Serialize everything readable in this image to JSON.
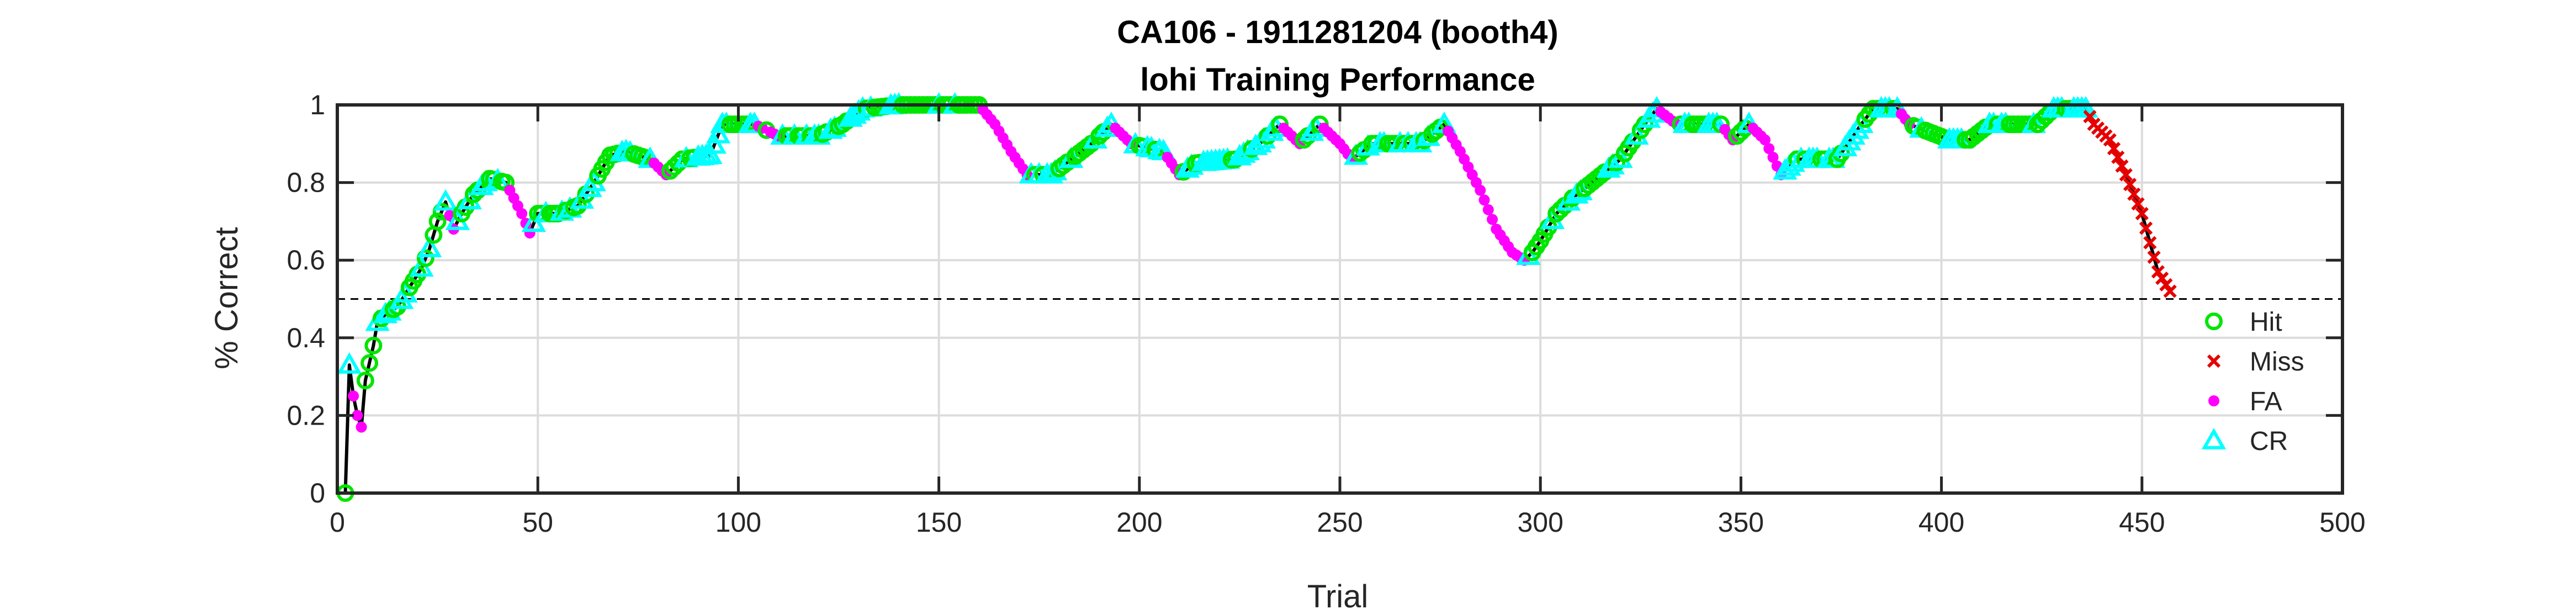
{
  "chart_data": {
    "type": "line",
    "title": "CA106 - 1911281204 (booth4)",
    "subtitle": "lohi Training Performance",
    "xlabel": "Trial",
    "ylabel": "% Correct",
    "xlim": [
      0,
      500
    ],
    "ylim": [
      0,
      1
    ],
    "xticks": [
      0,
      50,
      100,
      150,
      200,
      250,
      300,
      350,
      400,
      450,
      500
    ],
    "yticks": [
      0,
      0.2,
      0.4,
      0.6,
      0.8,
      1
    ],
    "xtick_labels": [
      "0",
      "50",
      "100",
      "150",
      "200",
      "250",
      "300",
      "350",
      "400",
      "450",
      "500"
    ],
    "ytick_labels": [
      "0",
      "0.2",
      "0.4",
      "0.6",
      "0.8",
      "1"
    ],
    "grid": true,
    "legend_position": "right",
    "threshold": 0.5,
    "series": [
      {
        "name": "Hit",
        "marker": "circle-open",
        "color": "#00e600"
      },
      {
        "name": "Miss",
        "marker": "x",
        "color": "#e60000"
      },
      {
        "name": "FA",
        "marker": "dot",
        "color": "#ff00ff"
      },
      {
        "name": "CR",
        "marker": "triangle-open",
        "color": "#00ffff"
      }
    ],
    "performance_keyframes": [
      [
        1,
        0
      ],
      [
        2,
        0
      ],
      [
        3,
        0.33
      ],
      [
        4,
        0.25
      ],
      [
        5,
        0.2
      ],
      [
        6,
        0.17
      ],
      [
        7,
        0.29
      ],
      [
        9,
        0.38
      ],
      [
        10,
        0.44
      ],
      [
        12,
        0.46
      ],
      [
        15,
        0.48
      ],
      [
        18,
        0.53
      ],
      [
        21,
        0.58
      ],
      [
        23,
        0.63
      ],
      [
        25,
        0.7
      ],
      [
        27,
        0.75
      ],
      [
        29,
        0.68
      ],
      [
        31,
        0.72
      ],
      [
        34,
        0.77
      ],
      [
        38,
        0.81
      ],
      [
        42,
        0.8
      ],
      [
        44,
        0.76
      ],
      [
        46,
        0.72
      ],
      [
        48,
        0.67
      ],
      [
        50,
        0.72
      ],
      [
        55,
        0.72
      ],
      [
        60,
        0.74
      ],
      [
        64,
        0.8
      ],
      [
        68,
        0.87
      ],
      [
        72,
        0.88
      ],
      [
        78,
        0.86
      ],
      [
        82,
        0.82
      ],
      [
        86,
        0.86
      ],
      [
        93,
        0.87
      ],
      [
        96,
        0.95
      ],
      [
        104,
        0.95
      ],
      [
        110,
        0.92
      ],
      [
        120,
        0.92
      ],
      [
        126,
        0.95
      ],
      [
        131,
        0.99
      ],
      [
        140,
        1
      ],
      [
        160,
        1
      ],
      [
        164,
        0.95
      ],
      [
        168,
        0.88
      ],
      [
        172,
        0.82
      ],
      [
        178,
        0.82
      ],
      [
        183,
        0.86
      ],
      [
        188,
        0.9
      ],
      [
        193,
        0.95
      ],
      [
        198,
        0.9
      ],
      [
        206,
        0.88
      ],
      [
        210,
        0.82
      ],
      [
        214,
        0.85
      ],
      [
        224,
        0.86
      ],
      [
        230,
        0.9
      ],
      [
        235,
        0.95
      ],
      [
        240,
        0.9
      ],
      [
        245,
        0.95
      ],
      [
        250,
        0.9
      ],
      [
        253,
        0.86
      ],
      [
        258,
        0.9
      ],
      [
        270,
        0.9
      ],
      [
        276,
        0.95
      ],
      [
        280,
        0.88
      ],
      [
        285,
        0.78
      ],
      [
        289,
        0.68
      ],
      [
        293,
        0.62
      ],
      [
        296,
        0.6
      ],
      [
        298,
        0.62
      ],
      [
        300,
        0.65
      ],
      [
        304,
        0.72
      ],
      [
        308,
        0.76
      ],
      [
        314,
        0.81
      ],
      [
        320,
        0.86
      ],
      [
        326,
        0.95
      ],
      [
        329,
        0.99
      ],
      [
        334,
        0.95
      ],
      [
        345,
        0.95
      ],
      [
        348,
        0.91
      ],
      [
        352,
        0.95
      ],
      [
        356,
        0.91
      ],
      [
        360,
        0.82
      ],
      [
        364,
        0.86
      ],
      [
        374,
        0.86
      ],
      [
        380,
        0.95
      ],
      [
        383,
        0.99
      ],
      [
        389,
        0.99
      ],
      [
        392,
        0.95
      ],
      [
        402,
        0.91
      ],
      [
        407,
        0.91
      ],
      [
        412,
        0.95
      ],
      [
        424,
        0.95
      ],
      [
        428,
        0.99
      ],
      [
        436,
        0.99
      ],
      [
        438,
        0.95
      ],
      [
        442,
        0.91
      ],
      [
        446,
        0.82
      ],
      [
        450,
        0.72
      ],
      [
        454,
        0.57
      ],
      [
        457,
        0.52
      ]
    ]
  }
}
